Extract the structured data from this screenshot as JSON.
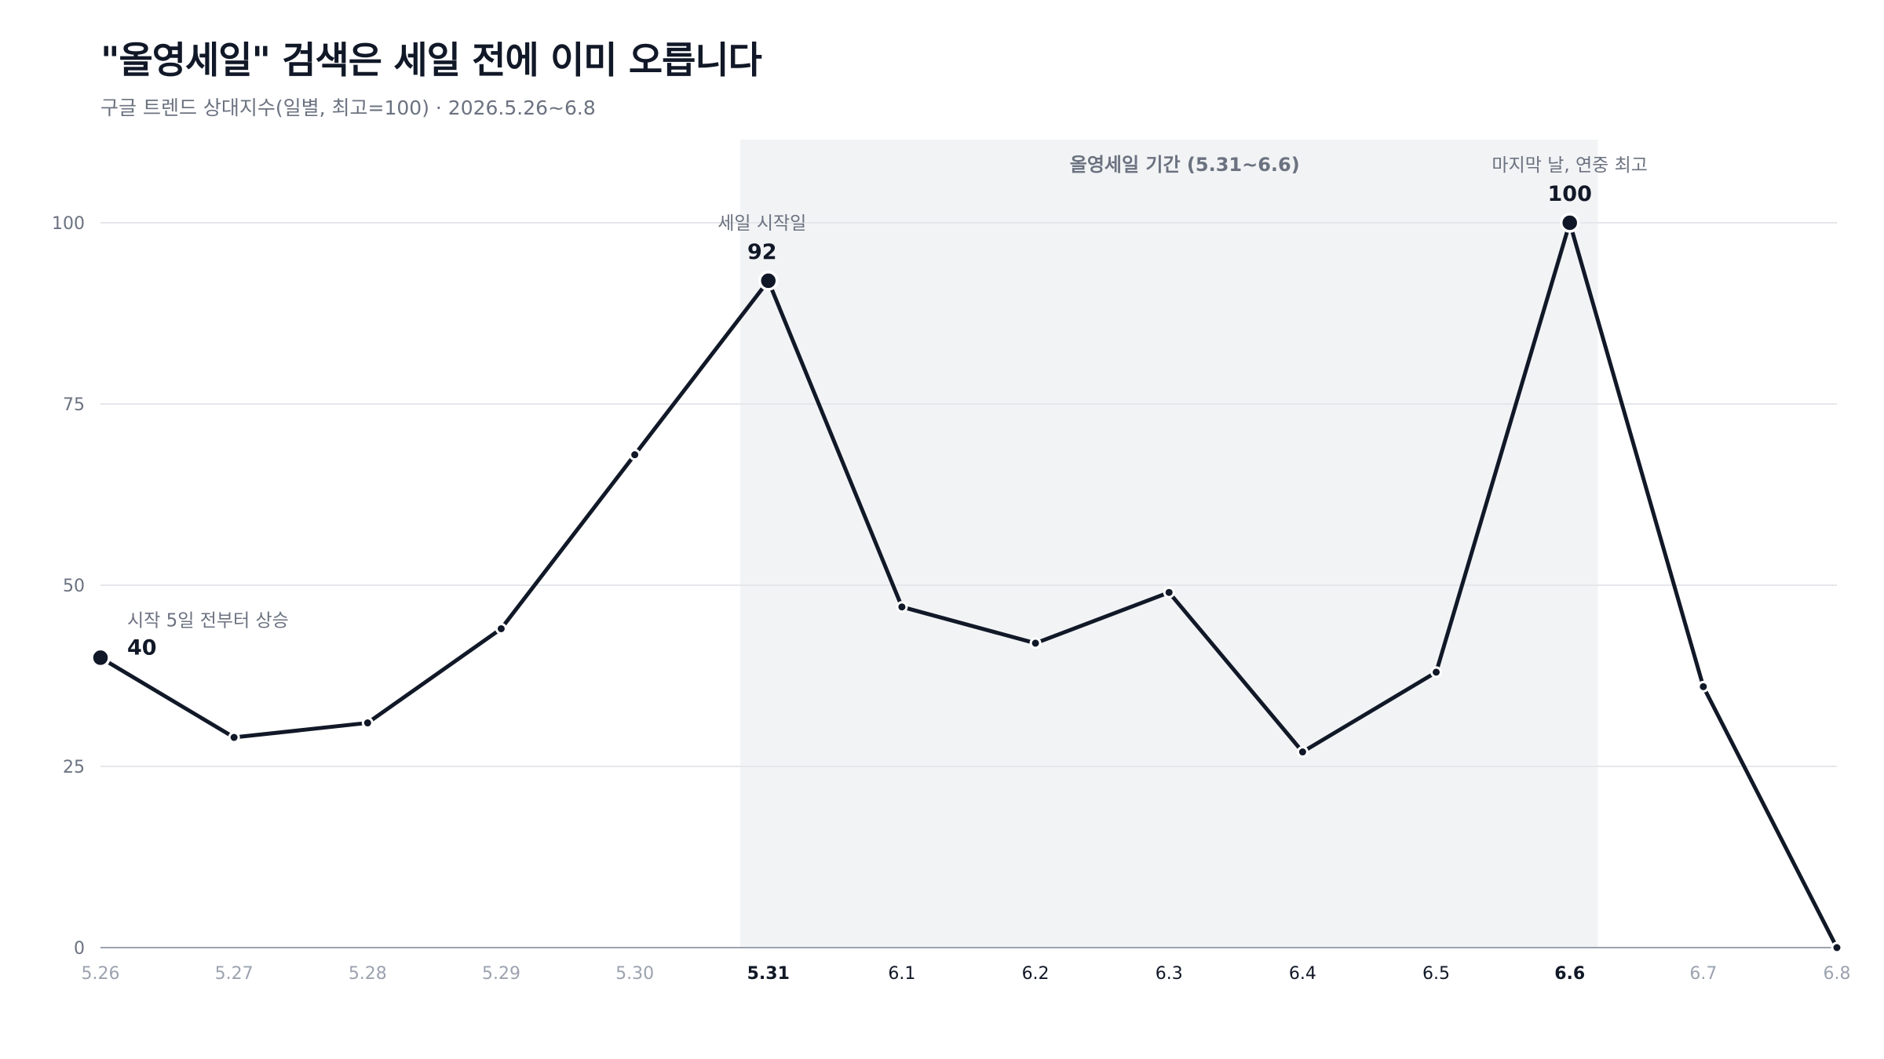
{
  "title": "\"올영세일\" 검색은 세일 전에 이미 오릅니다",
  "subtitle": "구글 트렌드 상대지수(일별, 최고=100) · 2026.5.26~6.8",
  "colors": {
    "line": "#111827",
    "grid": "#e5e7eb",
    "band": "#f2f3f5",
    "axis_text": "#6b7280",
    "muted_text": "#9ca3af",
    "annotation_text": "#6b7280"
  },
  "chart_data": {
    "type": "line",
    "categories": [
      "5.26",
      "5.27",
      "5.28",
      "5.29",
      "5.30",
      "5.31",
      "6.1",
      "6.2",
      "6.3",
      "6.4",
      "6.5",
      "6.6",
      "6.7",
      "6.8"
    ],
    "values": [
      40,
      29,
      31,
      44,
      68,
      92,
      47,
      42,
      49,
      27,
      38,
      100,
      36,
      0
    ],
    "ylim": [
      0,
      100
    ],
    "yticks": [
      0,
      25,
      50,
      75,
      100
    ],
    "grid": true,
    "highlight_band": {
      "from": "5.31",
      "to": "6.6",
      "label": "올영세일 기간 (5.31~6.6)"
    },
    "emphasized_ticks": [
      "5.31",
      "6.6"
    ],
    "muted_ticks": [
      "5.26",
      "5.27",
      "5.28",
      "5.29",
      "5.30",
      "6.7",
      "6.8"
    ],
    "annotations": [
      {
        "x": "5.26",
        "value": "40",
        "text": "시작 5일 전부터 상승",
        "align": "left"
      },
      {
        "x": "5.31",
        "value": "92",
        "text": "세일 시작일",
        "align": "center"
      },
      {
        "x": "6.6",
        "value": "100",
        "text": "마지막 날, 연중 최고",
        "align": "center"
      }
    ]
  }
}
